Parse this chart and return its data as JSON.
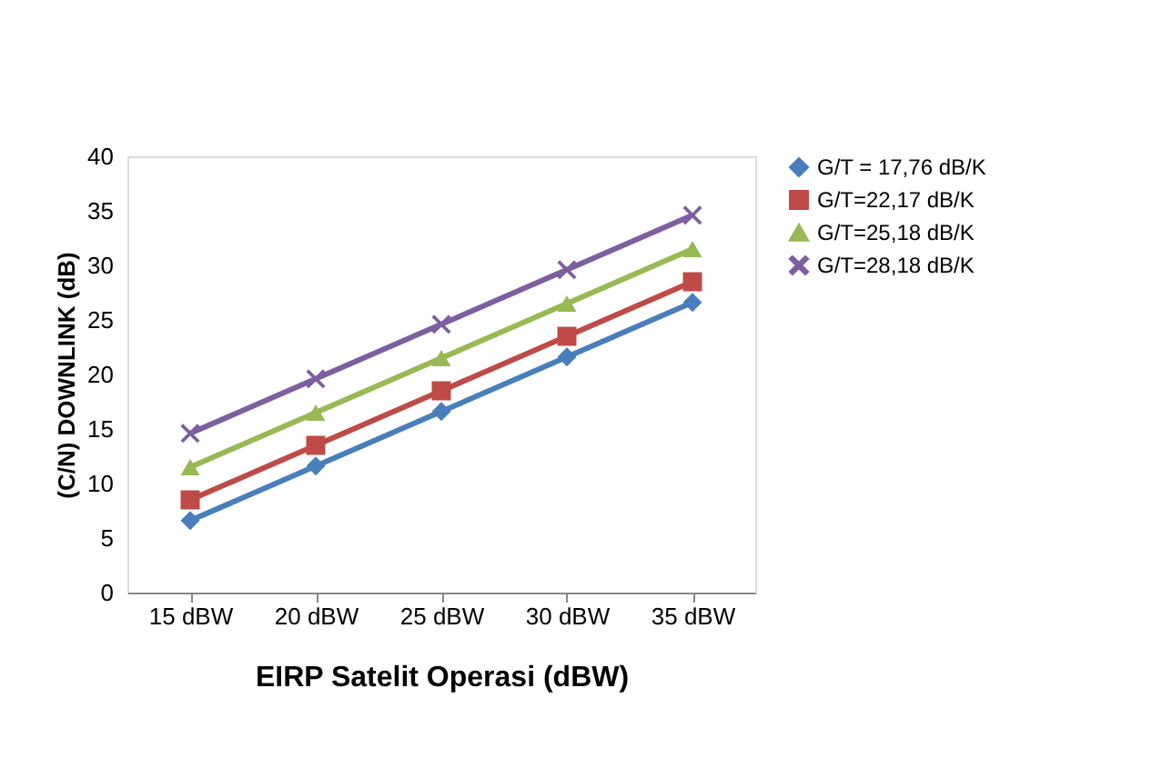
{
  "chart_data": {
    "type": "line",
    "xlabel": "EIRP Satelit Operasi (dBW)",
    "ylabel": "(C/N) DOWNLINK (dB)",
    "categories": [
      "15 dBW",
      "20 dBW",
      "25 dBW",
      "30 dBW",
      "35 dBW"
    ],
    "ylim": [
      0,
      40
    ],
    "yticks": [
      0,
      5,
      10,
      15,
      20,
      25,
      30,
      35,
      40
    ],
    "grid": false,
    "legend": "right",
    "line_style": "solid",
    "series": [
      {
        "name": "G/T = 17,76 dB/K",
        "color": "#4a7ebb",
        "marker": "diamond",
        "values": [
          6.6,
          11.6,
          16.6,
          21.6,
          26.6
        ]
      },
      {
        "name": "G/T=22,17 dB/K",
        "color": "#be4b48",
        "marker": "square",
        "values": [
          8.5,
          13.5,
          18.5,
          23.5,
          28.5
        ]
      },
      {
        "name": "G/T=25,18 dB/K",
        "color": "#98b954",
        "marker": "triangle",
        "values": [
          11.5,
          16.5,
          21.5,
          26.5,
          31.5
        ]
      },
      {
        "name": "G/T=28,18 dB/K",
        "color": "#7d5fa0",
        "marker": "cross",
        "values": [
          14.6,
          19.6,
          24.6,
          29.6,
          34.6
        ]
      }
    ]
  }
}
